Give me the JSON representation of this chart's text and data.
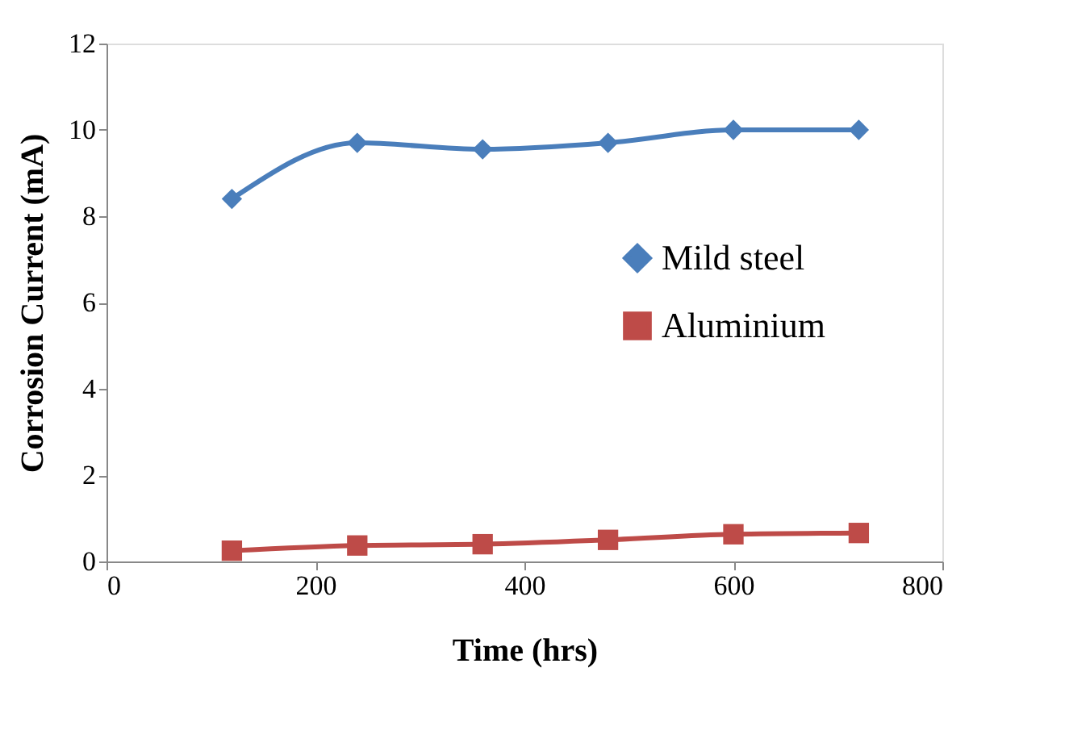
{
  "chart_data": {
    "type": "line",
    "xlabel": "Time (hrs)",
    "ylabel": "Corrosion Current (mA)",
    "x": [
      120,
      240,
      360,
      480,
      600,
      720
    ],
    "series": [
      {
        "name": "Mild steel",
        "color": "#4a7ebb",
        "marker": "diamond",
        "values": [
          8.4,
          9.7,
          9.55,
          9.7,
          10.0,
          10.0
        ]
      },
      {
        "name": "Aluminium",
        "color": "#be4b48",
        "marker": "square",
        "values": [
          0.25,
          0.37,
          0.4,
          0.5,
          0.63,
          0.66
        ]
      }
    ],
    "xlim": [
      0,
      800
    ],
    "xticks": [
      0,
      200,
      400,
      600,
      800
    ],
    "ylim": [
      0,
      12
    ],
    "yticks": [
      0,
      2,
      4,
      6,
      8,
      10,
      12
    ],
    "grid": false,
    "legend": "right",
    "line_style": "solid"
  }
}
